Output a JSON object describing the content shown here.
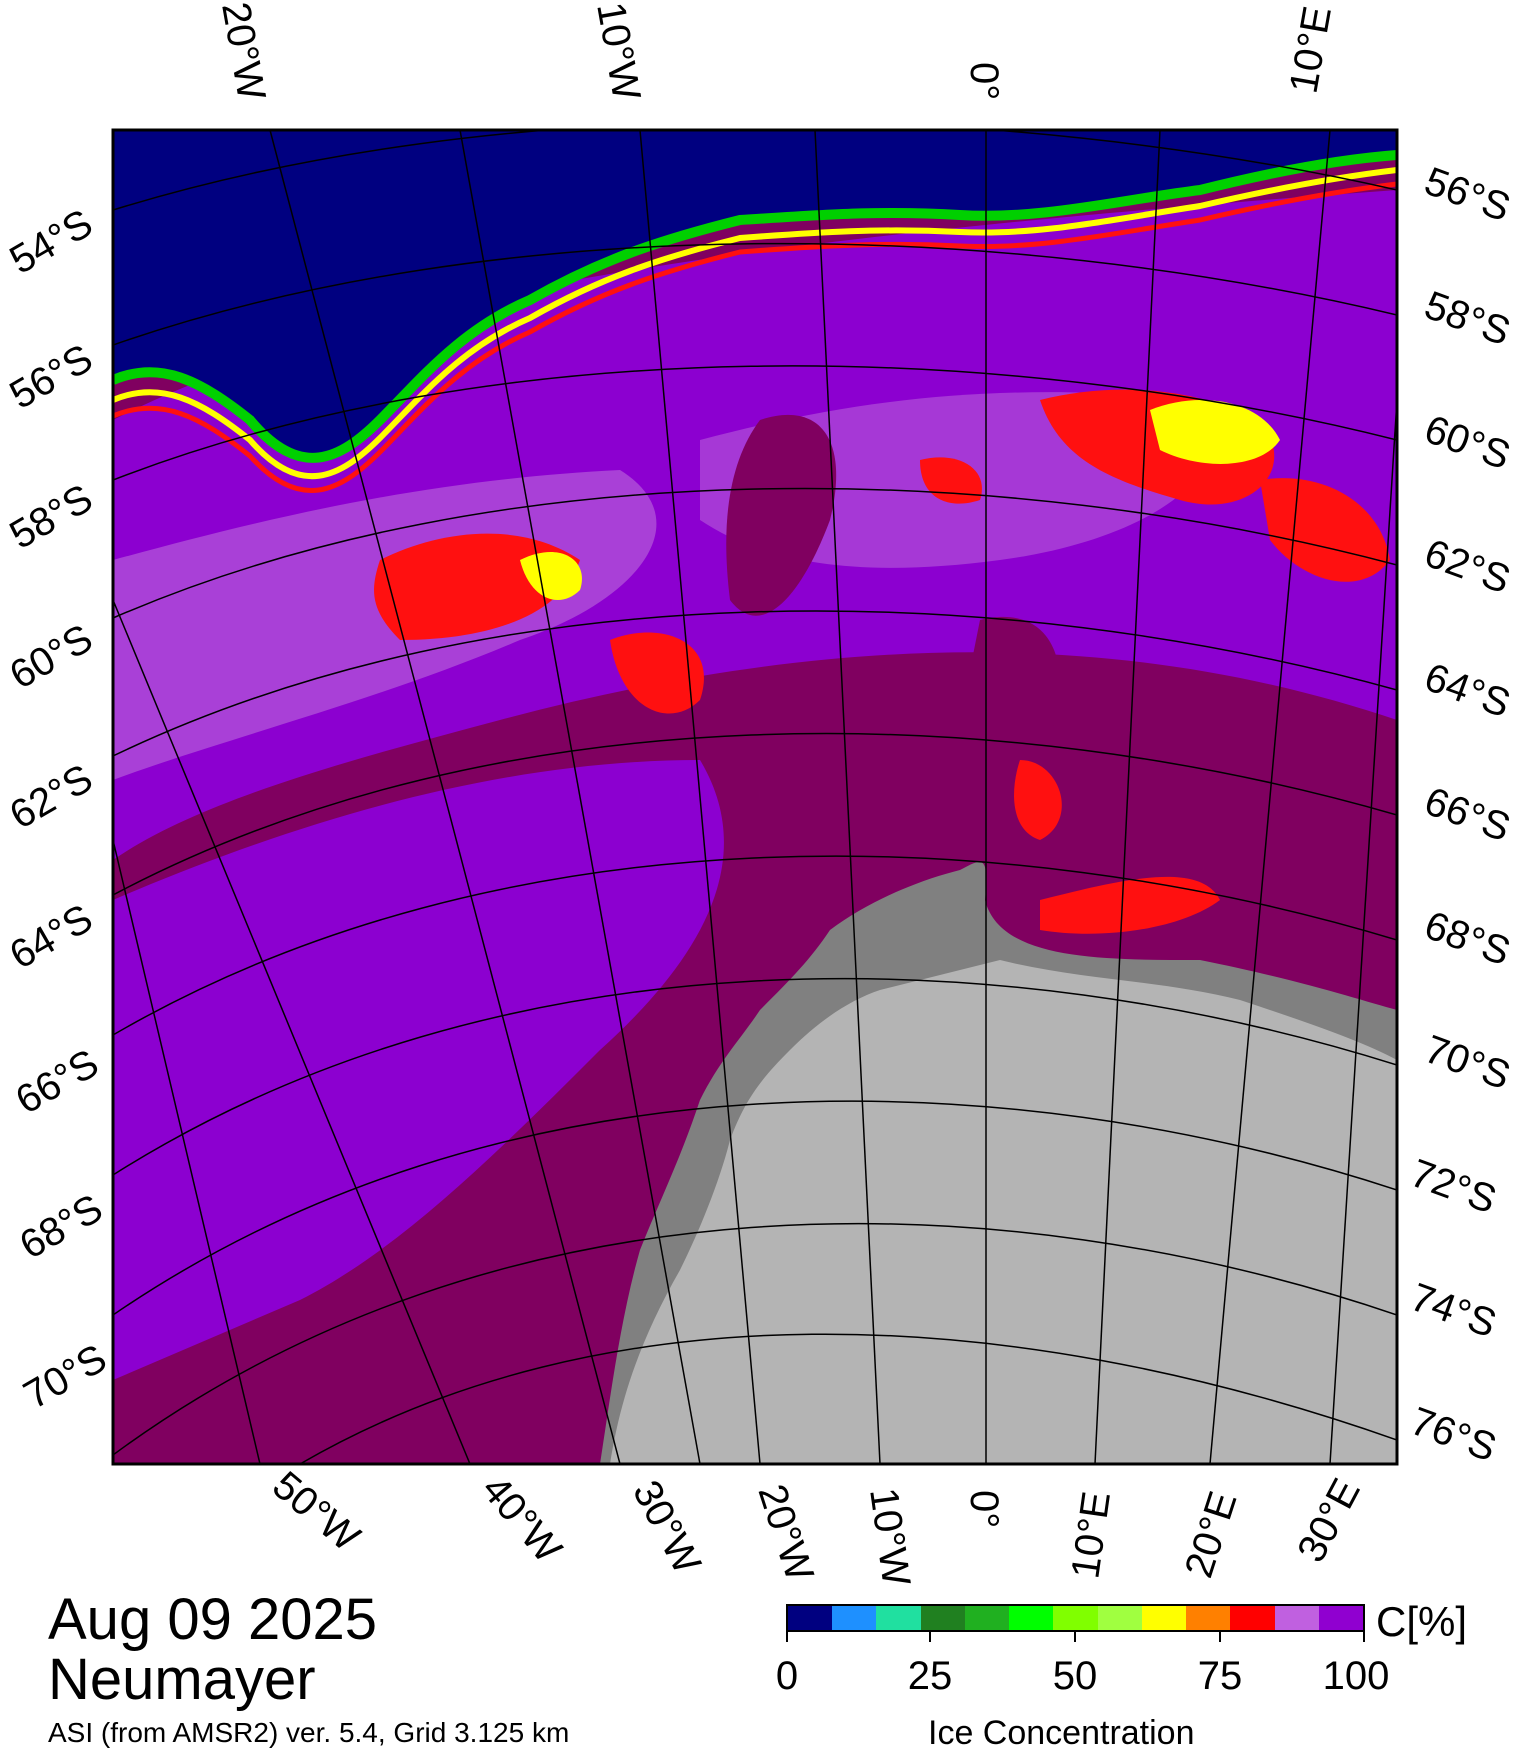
{
  "map": {
    "top_lon_labels": [
      "20°W",
      "10°W",
      "0°",
      "10°E"
    ],
    "bottom_lon_labels": [
      "50°W",
      "40°W",
      "30°W",
      "20°W",
      "10°W",
      "0°",
      "10°E",
      "20°E",
      "30°E"
    ],
    "left_lat_labels": [
      "54°S",
      "56°S",
      "58°S",
      "60°S",
      "62°S",
      "64°S",
      "66°S",
      "68°S",
      "70°S"
    ],
    "right_lat_labels": [
      "56°S",
      "58°S",
      "60°S",
      "62°S",
      "64°S",
      "66°S",
      "68°S",
      "70°S",
      "72°S",
      "74°S",
      "76°S"
    ],
    "colors": {
      "open_ocean": "#000080",
      "land_ice": "#b4b4b4",
      "ice_shelf": "#808080",
      "ice_dense": "#800060",
      "ice_high": "#8c00d0",
      "ice_mid": "#b050d8",
      "ice_red": "#ff1010",
      "ice_yellow": "#ffff00",
      "ice_edge_green": "#00d000"
    }
  },
  "title": {
    "date": "Aug 09 2025",
    "station": "Neumayer",
    "source": "ASI (from AMSR2) ver. 5.4,  Grid 3.125 km"
  },
  "colorbar": {
    "unit": "C[%]",
    "title": "Ice Concentration",
    "tick_labels": [
      "0",
      "25",
      "50",
      "75",
      "100"
    ],
    "colors": [
      "#000080",
      "#1e90ff",
      "#20e0a0",
      "#208020",
      "#20b020",
      "#00ff00",
      "#80ff00",
      "#a0ff40",
      "#ffff00",
      "#ff8000",
      "#ff0000",
      "#c060e0",
      "#9000d0"
    ]
  }
}
